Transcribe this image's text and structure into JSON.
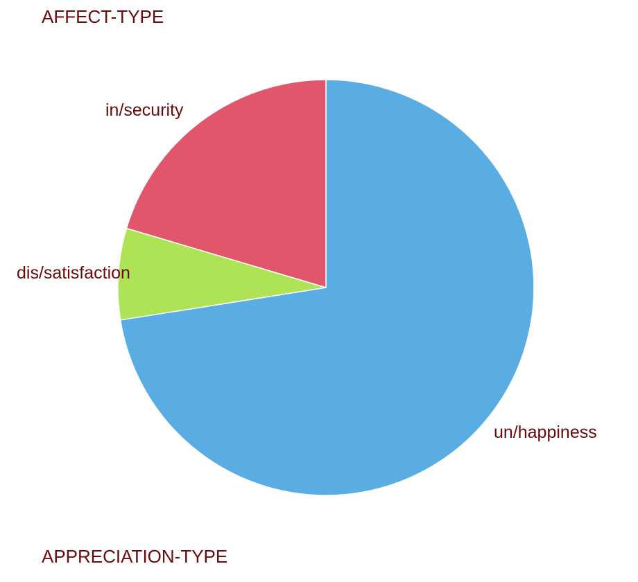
{
  "headings": {
    "top": "AFFECT-TYPE",
    "bottom": "APPRECIATION-TYPE"
  },
  "colors": {
    "text": "#6b0a0a",
    "slice_border": "#ffffff"
  },
  "chart_data": {
    "type": "pie",
    "start_angle": "12 o'clock",
    "direction": "clockwise",
    "slices": [
      {
        "label": "un/happiness",
        "value": 72.5,
        "color": "#59ade2"
      },
      {
        "label": "dis/satisfaction",
        "value": 7.1,
        "color": "#aee355"
      },
      {
        "label": "in/security",
        "value": 20.4,
        "color": "#e2566b"
      }
    ]
  }
}
